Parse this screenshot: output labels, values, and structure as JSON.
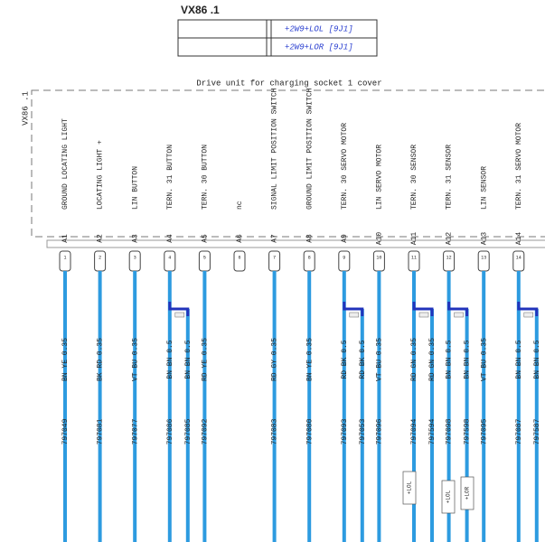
{
  "header": {
    "title": "VX86 .1",
    "rows": [
      "+2W9+LOL [9J1]",
      "+2W9+LOR [9J1]"
    ]
  },
  "component": {
    "title": "Drive unit for charging socket 1 cover",
    "id": "VX86 .1",
    "pins": [
      {
        "pin": "A1",
        "function": "GROUND LOCATING LIGHT",
        "number": "1",
        "wires": [
          {
            "code": "BN YE 0.35",
            "id": "797049"
          }
        ]
      },
      {
        "pin": "A2",
        "function": "LOCATING LIGHT +",
        "number": "2",
        "wires": [
          {
            "code": "BK RD 0.35",
            "id": "797081"
          }
        ]
      },
      {
        "pin": "A3",
        "function": "LIN BUTTON",
        "number": "3",
        "wires": [
          {
            "code": "VT BU 0.35",
            "id": "797077"
          }
        ]
      },
      {
        "pin": "A4",
        "function": "TERN. 31 BUTTON",
        "number": "4",
        "wires": [
          {
            "code": "BN BN 0.5",
            "id": "797086"
          },
          {
            "code": "BN BN 0.5",
            "id": "797085"
          }
        ]
      },
      {
        "pin": "A5",
        "function": "TERN. 30 BUTTON",
        "number": "5",
        "wires": [
          {
            "code": "RD YE 0.35",
            "id": "797092"
          }
        ]
      },
      {
        "pin": "A6",
        "function": "nc",
        "number": "6",
        "wires": []
      },
      {
        "pin": "A7",
        "function": "SIGNAL LIMIT POSITION SWITCH",
        "number": "7",
        "wires": [
          {
            "code": "RD GY 0.35",
            "id": "797083"
          }
        ]
      },
      {
        "pin": "A8",
        "function": "GROUND LIMIT POSITION SWITCH",
        "number": "8",
        "wires": [
          {
            "code": "BN YE 0.35",
            "id": "797080"
          }
        ]
      },
      {
        "pin": "A9",
        "function": "TERN. 30 SERVO MOTOR",
        "number": "9",
        "wires": [
          {
            "code": "RD BK 0.5",
            "id": "797093"
          },
          {
            "code": "RD BK 0.5",
            "id": "797053"
          }
        ]
      },
      {
        "pin": "A10",
        "function": "LIN SERVO MOTOR",
        "number": "10",
        "wires": [
          {
            "code": "VT BU 0.35",
            "id": "797096"
          }
        ]
      },
      {
        "pin": "A11",
        "function": "TERN. 30 SENSOR",
        "number": "11",
        "wires": [
          {
            "code": "RD GN 0.35",
            "id": "797094"
          },
          {
            "code": "RD GN 0.35",
            "id": "797594"
          }
        ]
      },
      {
        "pin": "A12",
        "function": "TERN. 31 SENSOR",
        "number": "12",
        "wires": [
          {
            "code": "BN BN 0.5",
            "id": "797098"
          },
          {
            "code": "BN BN 0.5",
            "id": "797598"
          }
        ]
      },
      {
        "pin": "A13",
        "function": "LIN SENSOR",
        "number": "13",
        "wires": [
          {
            "code": "VT BU 0.35",
            "id": "797095"
          }
        ]
      },
      {
        "pin": "A14",
        "function": "TERN. 31 SERVO MOTOR",
        "number": "14",
        "wires": [
          {
            "code": "BN BN 0.5",
            "id": "797087"
          },
          {
            "code": "BN BN 0.5",
            "id": "797587"
          }
        ]
      }
    ]
  },
  "tags": [
    "+LOL",
    "+LOL",
    "+LOR"
  ]
}
